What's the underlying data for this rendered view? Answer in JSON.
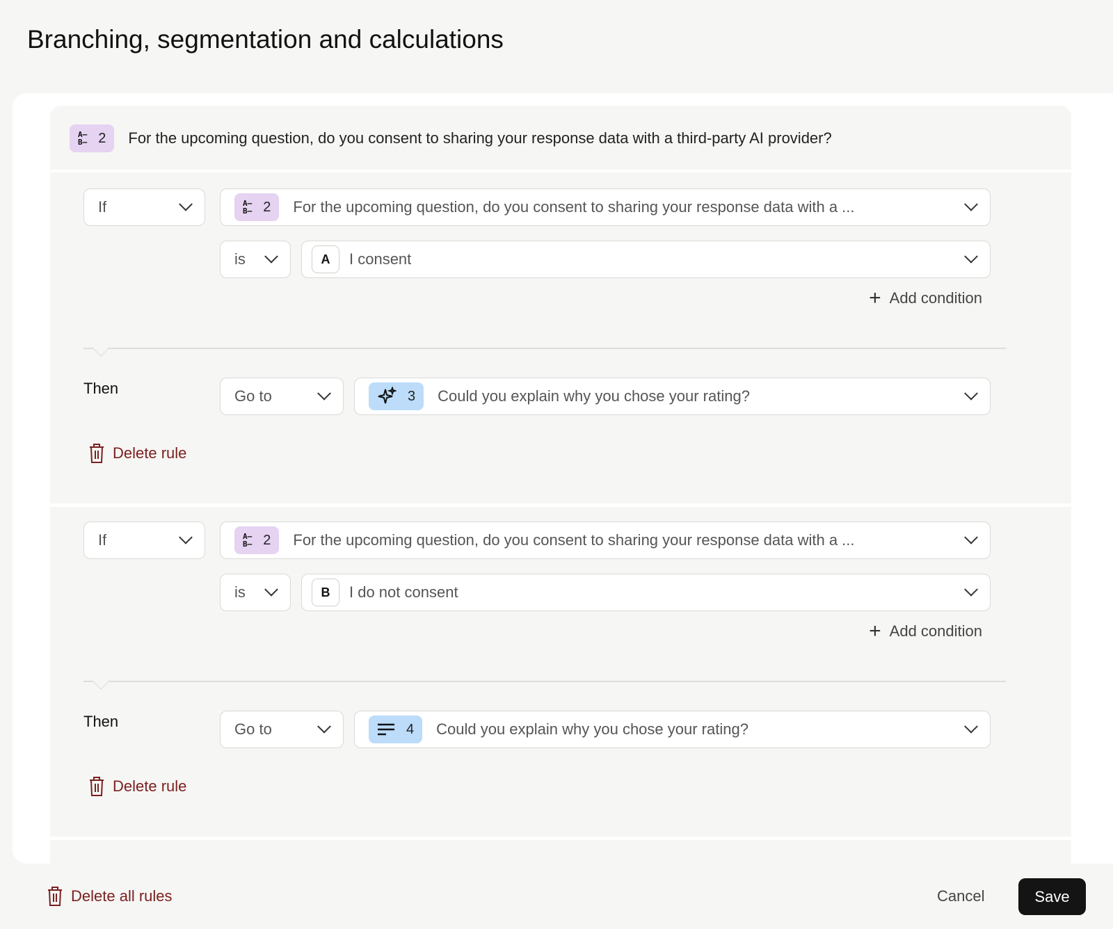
{
  "title": "Branching, segmentation and calculations",
  "question": {
    "number": "2",
    "text": "For the upcoming question, do you consent to sharing your response data with a third-party AI provider?",
    "icon": "multiple-choice-icon",
    "badge_color": "#e5d3f1"
  },
  "rules": [
    {
      "if_label": "If",
      "question_number": "2",
      "question_text": "For the upcoming question, do you consent to sharing your response data with a ...",
      "operator": "is",
      "answer_letter": "A",
      "answer_text": "I consent",
      "add_condition": "Add condition",
      "then_label": "Then",
      "action": "Go to",
      "target_number": "3",
      "target_icon": "sparkle-icon",
      "target_text": "Could you explain why you chose your rating?",
      "delete_label": "Delete rule"
    },
    {
      "if_label": "If",
      "question_number": "2",
      "question_text": "For the upcoming question, do you consent to sharing your response data with a ...",
      "operator": "is",
      "answer_letter": "B",
      "answer_text": "I do not consent",
      "add_condition": "Add condition",
      "then_label": "Then",
      "action": "Go to",
      "target_number": "4",
      "target_icon": "long-text-icon",
      "target_text": "Could you explain why you chose your rating?",
      "delete_label": "Delete rule"
    }
  ],
  "footer": {
    "delete_all": "Delete all rules",
    "cancel": "Cancel",
    "save": "Save"
  },
  "colors": {
    "danger": "#7a2020",
    "save_bg": "#141414",
    "target_badge": "#bcdcfa"
  }
}
